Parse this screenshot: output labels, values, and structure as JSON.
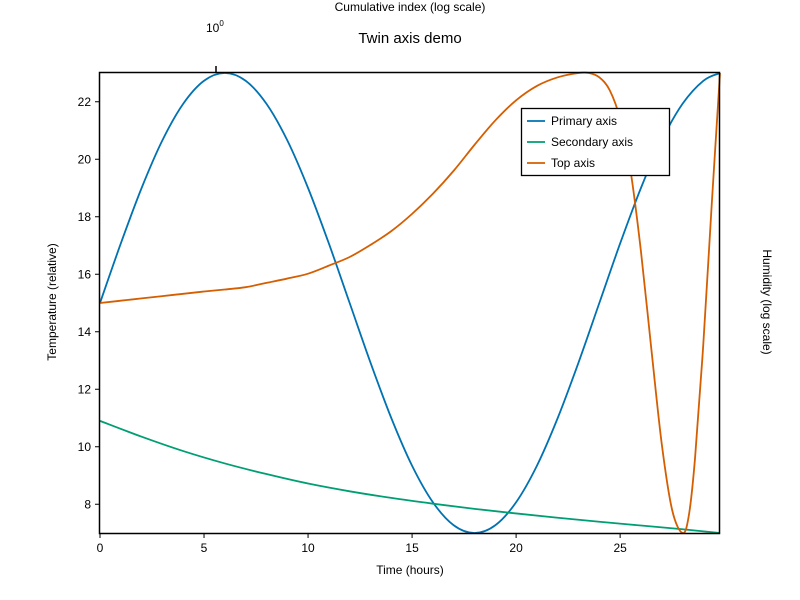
{
  "chart_data": {
    "type": "line",
    "title": "Twin axis demo",
    "xlabel": "Time (hours)",
    "ylabel": "Temperature (relative)",
    "ylabel_right": "Humidity (log scale)",
    "xlabel_top": "Cumulative index (log scale)",
    "top_tick_label": "10",
    "top_tick_exponent": "0",
    "xlim": [
      0,
      29.8
    ],
    "ylim": [
      7,
      23
    ],
    "xticks": [
      0,
      5,
      10,
      15,
      20,
      25
    ],
    "yticks": [
      8,
      10,
      12,
      14,
      16,
      18,
      20,
      22
    ],
    "grid": false,
    "legend_position": "upper-right",
    "series": [
      {
        "name": "Primary axis",
        "color": "#0072b2",
        "x": [
          0,
          1,
          2,
          3,
          4,
          5,
          6,
          7,
          8,
          9,
          10,
          11,
          12,
          13,
          14,
          15,
          16,
          17,
          18,
          19,
          20,
          21,
          22,
          23,
          24,
          25,
          26,
          27,
          28,
          29,
          29.8
        ],
        "y": [
          15.0,
          17.07,
          19.0,
          20.66,
          21.93,
          22.73,
          23.0,
          22.73,
          21.93,
          20.66,
          19.0,
          17.07,
          15.0,
          12.93,
          11.0,
          9.34,
          8.07,
          7.27,
          7.0,
          7.27,
          8.07,
          9.34,
          11.0,
          12.93,
          15.0,
          17.07,
          19.0,
          20.66,
          21.93,
          22.73,
          23.0
        ]
      },
      {
        "name": "Secondary axis",
        "color": "#009e73",
        "x": [
          0,
          2,
          4,
          6,
          8,
          10,
          12,
          14,
          16,
          18,
          20,
          22,
          24,
          26,
          28,
          29.8
        ],
        "y": [
          10.9,
          10.35,
          9.85,
          9.42,
          9.05,
          8.72,
          8.45,
          8.22,
          8.02,
          7.84,
          7.68,
          7.53,
          7.39,
          7.26,
          7.13,
          7.0
        ]
      },
      {
        "name": "Top axis",
        "color": "#d55e00",
        "x": [
          0,
          1,
          2,
          3,
          4,
          5,
          6,
          7,
          8,
          9,
          10,
          11,
          12,
          13,
          14,
          15,
          16,
          17,
          18,
          19,
          20,
          21,
          22,
          23,
          23.5,
          24,
          24.5,
          25,
          25.5,
          26,
          26.5,
          27,
          27.5,
          28,
          28.3,
          28.6,
          29,
          29.4,
          29.8
        ],
        "y": [
          15.0,
          15.08,
          15.16,
          15.24,
          15.32,
          15.4,
          15.47,
          15.55,
          15.7,
          15.85,
          16.02,
          16.3,
          16.6,
          17.02,
          17.5,
          18.1,
          18.8,
          19.6,
          20.5,
          21.35,
          22.05,
          22.55,
          22.85,
          23.0,
          23.0,
          22.85,
          22.4,
          21.4,
          19.6,
          16.8,
          13.4,
          10.1,
          7.8,
          7.0,
          7.6,
          9.6,
          13.6,
          18.4,
          23.0
        ]
      }
    ]
  }
}
